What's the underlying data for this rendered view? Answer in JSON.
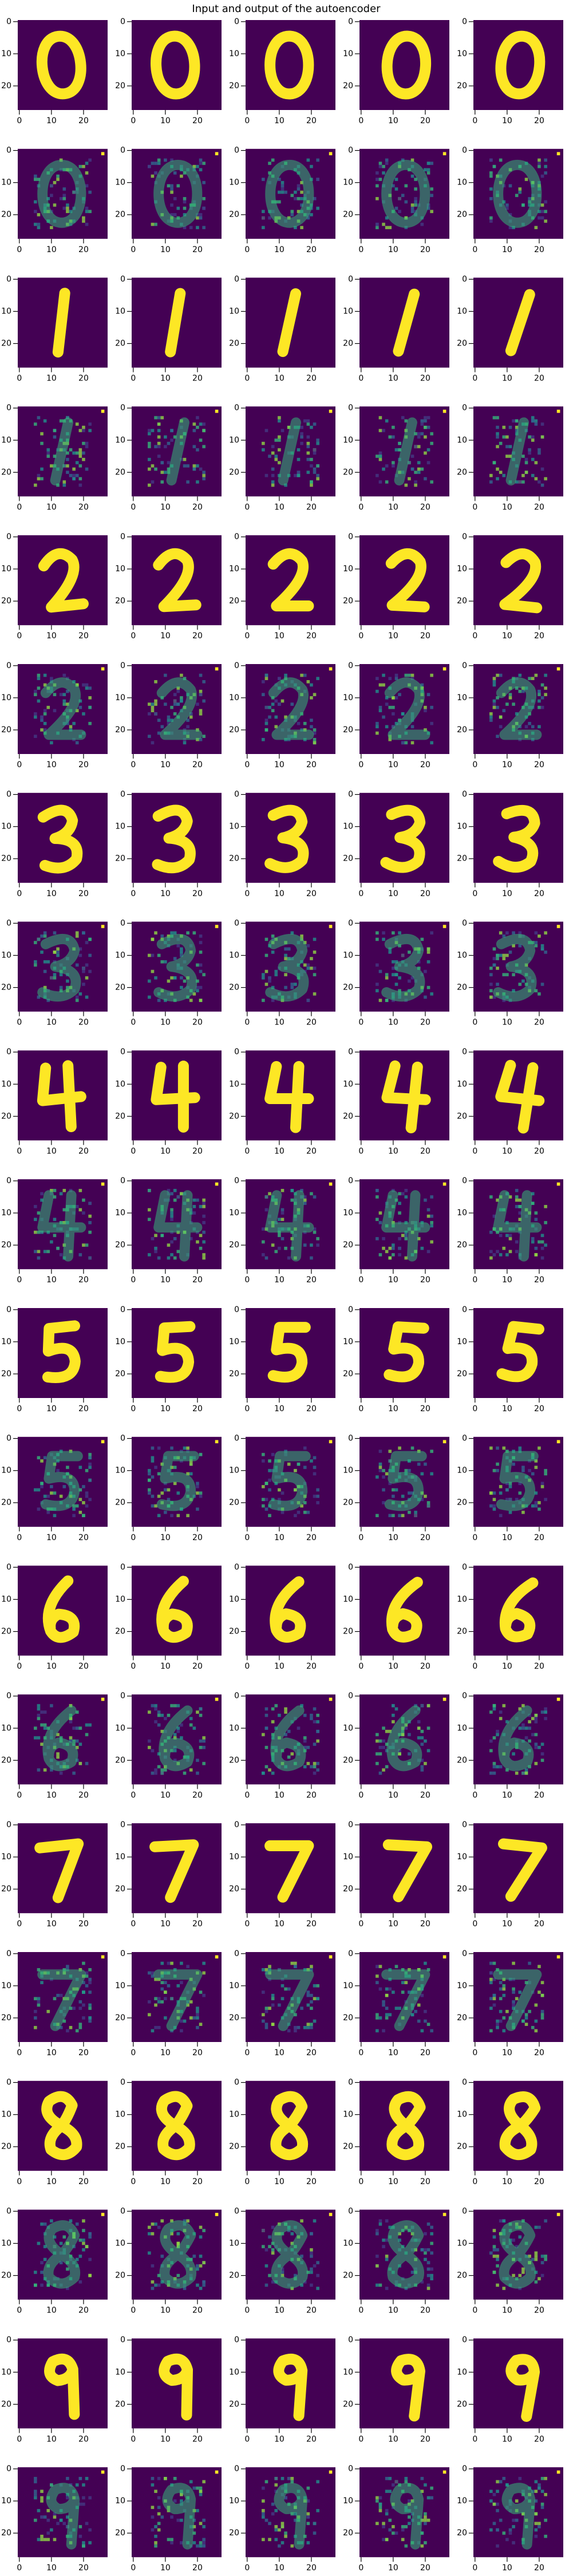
{
  "chart_data": {
    "type": "image",
    "title": "Input and output of the autoencoder",
    "xlim": [
      -0.5,
      27.5
    ],
    "ylim": [
      27.5,
      -0.5
    ],
    "xticks": [
      0,
      10,
      20
    ],
    "yticks": [
      0,
      10,
      20
    ]
  }
}
